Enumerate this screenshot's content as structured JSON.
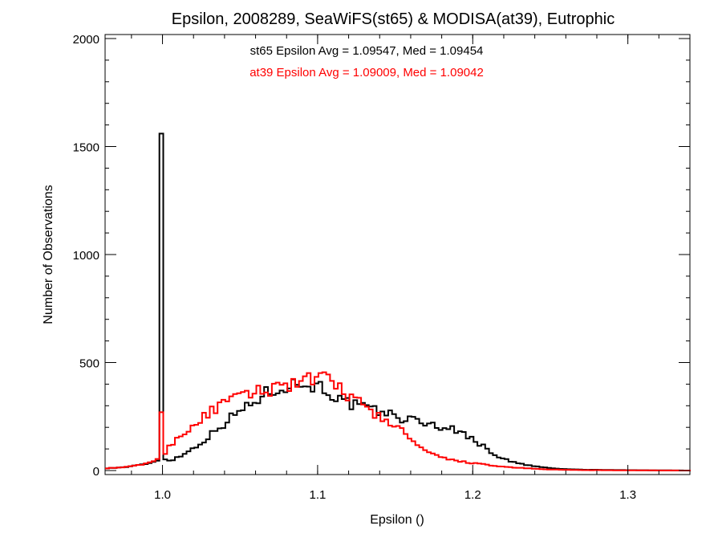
{
  "chart_data": {
    "type": "line",
    "title": "Epsilon, 2008289, SeaWiFS(st65) & MODISA(at39), Eutrophic",
    "xlabel": "Epsilon ()",
    "ylabel": "Number of Observations",
    "xlim": [
      0.963,
      1.34
    ],
    "ylim": [
      0,
      2000
    ],
    "x_ticks": [
      {
        "value": 1.0,
        "label": "1.0"
      },
      {
        "value": 1.1,
        "label": "1.1"
      },
      {
        "value": 1.2,
        "label": "1.2"
      },
      {
        "value": 1.3,
        "label": "1.3"
      }
    ],
    "y_ticks": [
      {
        "value": 0,
        "label": "0"
      },
      {
        "value": 500,
        "label": "500"
      },
      {
        "value": 1000,
        "label": "1000"
      },
      {
        "value": 1500,
        "label": "1500"
      },
      {
        "value": 2000,
        "label": "2000"
      }
    ],
    "grid": false,
    "annotations": [
      {
        "text": "st65 Epsilon Avg = 1.09547, Med = 1.09454",
        "color": "#000000"
      },
      {
        "text": "at39 Epsilon Avg = 1.09009, Med = 1.09042",
        "color": "#ff0000"
      }
    ],
    "series": [
      {
        "color": "#000000",
        "spike": {
          "x": 1.0,
          "y": 1560
        },
        "x": [
          0.963,
          0.975,
          0.985,
          0.995,
          1.0,
          1.005,
          1.015,
          1.025,
          1.035,
          1.045,
          1.055,
          1.065,
          1.075,
          1.085,
          1.095,
          1.105,
          1.115,
          1.125,
          1.135,
          1.145,
          1.155,
          1.165,
          1.175,
          1.185,
          1.195,
          1.205,
          1.215,
          1.225,
          1.235,
          1.245,
          1.255,
          1.27,
          1.3,
          1.34
        ],
        "y": [
          10,
          15,
          25,
          40,
          60,
          45,
          80,
          130,
          190,
          250,
          300,
          350,
          390,
          400,
          400,
          380,
          320,
          300,
          280,
          265,
          240,
          230,
          210,
          195,
          170,
          120,
          70,
          40,
          25,
          15,
          8,
          4,
          2,
          0
        ]
      },
      {
        "color": "#ff0000",
        "spike": {
          "x": 1.0,
          "y": 270
        },
        "x": [
          0.963,
          0.975,
          0.985,
          0.995,
          1.0,
          1.005,
          1.015,
          1.025,
          1.035,
          1.045,
          1.055,
          1.065,
          1.075,
          1.085,
          1.095,
          1.105,
          1.115,
          1.125,
          1.135,
          1.145,
          1.155,
          1.165,
          1.175,
          1.185,
          1.195,
          1.205,
          1.215,
          1.225,
          1.235,
          1.245,
          1.255,
          1.27,
          1.3,
          1.34
        ],
        "y": [
          10,
          15,
          25,
          45,
          60,
          120,
          180,
          240,
          290,
          330,
          350,
          370,
          390,
          410,
          420,
          420,
          380,
          320,
          270,
          230,
          180,
          110,
          70,
          50,
          40,
          30,
          20,
          15,
          10,
          6,
          4,
          2,
          1,
          0
        ]
      }
    ]
  }
}
